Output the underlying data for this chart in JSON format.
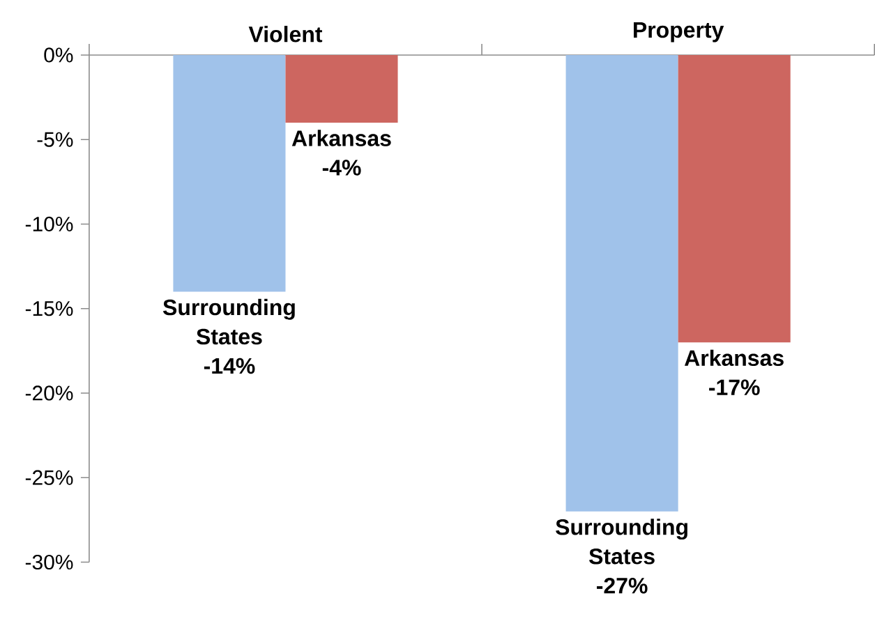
{
  "chart_data": {
    "type": "bar",
    "categories": [
      "Violent",
      "Property"
    ],
    "series": [
      {
        "name": "Surrounding States",
        "color": "#a0c2ea",
        "values": [
          -14,
          -27
        ],
        "value_labels": [
          "-14%",
          "-27%"
        ]
      },
      {
        "name": "Arkansas",
        "color": "#cd6660",
        "values": [
          -4,
          -17
        ],
        "value_labels": [
          "-4%",
          "-17%"
        ]
      }
    ],
    "ylim": [
      -30,
      0
    ],
    "yticks": [
      {
        "value": 0,
        "label": "0%"
      },
      {
        "value": -5,
        "label": "-5%"
      },
      {
        "value": -10,
        "label": "-10%"
      },
      {
        "value": -15,
        "label": "-15%"
      },
      {
        "value": -20,
        "label": "-20%"
      },
      {
        "value": -25,
        "label": "-25%"
      },
      {
        "value": -30,
        "label": "-30%"
      }
    ],
    "grid": false
  }
}
